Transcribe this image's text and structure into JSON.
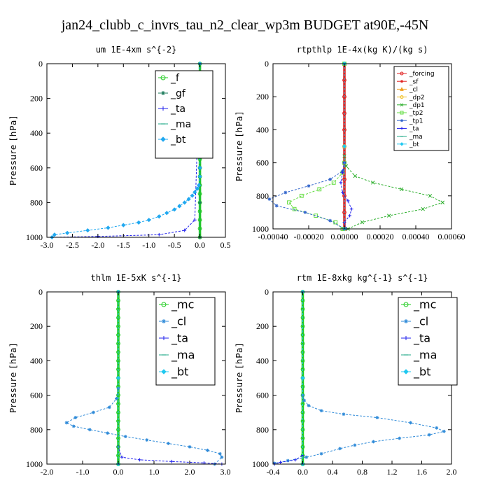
{
  "figure": {
    "title": "jan24_clubb_c_invrs_tau_n2_clear_wp3m  BUDGET at90E,-45N"
  },
  "chart_data": [
    {
      "type": "line",
      "title": "um   1E-4xm s^{-2}",
      "ylabel": "Pressure [hPa]",
      "xlim": [
        -3.0,
        0.5
      ],
      "ylim": [
        1000,
        0
      ],
      "xticks": [
        "-3.0",
        "-2.5",
        "-2.0",
        "-1.5",
        "-1.0",
        "-0.5",
        "0.0",
        "0.5"
      ],
      "xtick_values": [
        -3.0,
        -2.5,
        -2.0,
        -1.5,
        -1.0,
        -0.5,
        0.0,
        0.5
      ],
      "yticks": [
        "0",
        "200",
        "400",
        "600",
        "800",
        "1000"
      ],
      "ytick_values": [
        0,
        200,
        400,
        600,
        800,
        1000
      ],
      "legend_position": "top-right",
      "series": [
        {
          "name": "_f",
          "color": "#22cc22",
          "marker": "circle",
          "x": [
            0,
            0,
            0,
            0,
            0,
            0,
            0,
            0,
            0,
            0,
            0,
            0,
            0,
            0,
            0,
            0,
            0,
            0,
            0,
            0,
            0
          ],
          "y": [
            0,
            50,
            100,
            150,
            200,
            250,
            300,
            350,
            400,
            450,
            500,
            550,
            600,
            650,
            700,
            750,
            800,
            850,
            900,
            950,
            1000
          ]
        },
        {
          "name": "_gf",
          "color": "#1a7a5a",
          "marker": "star",
          "x": [
            0,
            0,
            0,
            0,
            0,
            0
          ],
          "y": [
            0,
            200,
            400,
            600,
            800,
            1000
          ]
        },
        {
          "name": "_ta",
          "color": "#2020ee",
          "marker": "plus",
          "x": [
            0,
            -0.1,
            -0.3,
            -0.8,
            -2.0,
            -2.9
          ],
          "y": [
            0,
            900,
            960,
            985,
            995,
            1000
          ]
        },
        {
          "name": "_ma",
          "color": "#22aa88",
          "marker": "dash",
          "x": [
            0,
            0,
            0,
            0
          ],
          "y": [
            0,
            300,
            700,
            1000
          ]
        },
        {
          "name": "_bt",
          "color": "#20a8f0",
          "marker": "diamond",
          "x": [
            0,
            0,
            0,
            0,
            0,
            -0.02,
            -0.05,
            -0.1,
            -0.15,
            -0.22,
            -0.3,
            -0.4,
            -0.5,
            -0.65,
            -0.8,
            -1.0,
            -1.2,
            -1.5,
            -1.8,
            -2.2,
            -2.6,
            -2.85,
            -2.9
          ],
          "y": [
            0,
            200,
            400,
            600,
            650,
            700,
            720,
            740,
            760,
            780,
            800,
            820,
            840,
            860,
            880,
            900,
            915,
            930,
            945,
            960,
            975,
            985,
            1000
          ]
        }
      ]
    },
    {
      "type": "line",
      "title": "rtpthlp   1E-4x(kg K)/(kg s)",
      "ylabel": "Pressure [hPa]",
      "xlim": [
        -0.0004,
        0.0006
      ],
      "ylim": [
        1000,
        0
      ],
      "xticks": [
        "-0.00040",
        "-0.00020",
        "0.00000",
        "0.00020",
        "0.00040",
        "0.00060"
      ],
      "xtick_values": [
        -0.0004,
        -0.0002,
        0.0,
        0.0002,
        0.0004,
        0.0006
      ],
      "yticks": [
        "0",
        "200",
        "400",
        "600",
        "800",
        "1000"
      ],
      "ytick_values": [
        0,
        200,
        400,
        600,
        800,
        1000
      ],
      "legend_position": "top-right",
      "series": [
        {
          "name": "_forcing",
          "color": "#e02020",
          "marker": "circle",
          "x": [
            0,
            0,
            0,
            0,
            0,
            0,
            0,
            0,
            0,
            0,
            0
          ],
          "y": [
            0,
            100,
            200,
            300,
            400,
            500,
            600,
            700,
            800,
            900,
            1000
          ]
        },
        {
          "name": "_sf",
          "color": "#e02020",
          "marker": "star",
          "x": [
            0,
            0,
            0
          ],
          "y": [
            0,
            500,
            1000
          ]
        },
        {
          "name": "_cl",
          "color": "#f0a020",
          "marker": "triangle",
          "x": [
            0,
            0,
            0
          ],
          "y": [
            0,
            500,
            1000
          ]
        },
        {
          "name": "_dp2",
          "color": "#f0c020",
          "marker": "circle-open",
          "x": [
            0,
            0,
            0
          ],
          "y": [
            0,
            500,
            1000
          ]
        },
        {
          "name": "_dp1",
          "color": "#30b030",
          "marker": "x",
          "x": [
            0,
            0,
            1e-05,
            6e-05,
            0.00016,
            0.00032,
            0.00048,
            0.00055,
            0.00044,
            0.00025,
            0.0001,
            2e-05
          ],
          "y": [
            0,
            560,
            620,
            680,
            720,
            760,
            800,
            840,
            880,
            920,
            960,
            1000
          ]
        },
        {
          "name": "_tp2",
          "color": "#66dd44",
          "marker": "square",
          "x": [
            0,
            0,
            -1e-05,
            -6e-05,
            -0.00014,
            -0.00024,
            -0.00031,
            -0.00028,
            -0.00016,
            -5e-05,
            -1e-05
          ],
          "y": [
            0,
            600,
            660,
            720,
            760,
            800,
            840,
            880,
            920,
            960,
            1000
          ]
        },
        {
          "name": "_tp1",
          "color": "#3366cc",
          "marker": "star",
          "x": [
            0,
            0,
            -1e-05,
            -8e-05,
            -0.0002,
            -0.00033,
            -0.00042,
            -0.00038,
            -0.00022,
            -8e-05,
            0.0
          ],
          "y": [
            0,
            600,
            650,
            700,
            740,
            780,
            820,
            860,
            900,
            950,
            1000
          ]
        },
        {
          "name": "_ta",
          "color": "#2020ee",
          "marker": "plus",
          "x": [
            0,
            0,
            -1e-05,
            -2e-05,
            -1e-05,
            2e-05,
            4e-05,
            3e-05,
            0.0,
            1e-05
          ],
          "y": [
            0,
            600,
            660,
            720,
            780,
            830,
            880,
            920,
            960,
            1000
          ]
        },
        {
          "name": "_ma",
          "color": "#22aa88",
          "marker": "dash",
          "x": [
            0,
            0,
            0
          ],
          "y": [
            0,
            500,
            1000
          ]
        },
        {
          "name": "_bt",
          "color": "#20c8f0",
          "marker": "diamond",
          "x": [
            0,
            0,
            0
          ],
          "y": [
            0,
            500,
            1000
          ]
        }
      ]
    },
    {
      "type": "line",
      "title": "thlm   1E-5xK s^{-1}",
      "ylabel": "Pressure [hPa]",
      "xlim": [
        -2.0,
        3.0
      ],
      "ylim": [
        1000,
        0
      ],
      "xticks": [
        "-2.0",
        "-1.0",
        "0.0",
        "1.0",
        "2.0",
        "3.0"
      ],
      "xtick_values": [
        -2.0,
        -1.0,
        0.0,
        1.0,
        2.0,
        3.0
      ],
      "yticks": [
        "0",
        "200",
        "400",
        "600",
        "800",
        "1000"
      ],
      "ytick_values": [
        0,
        200,
        400,
        600,
        800,
        1000
      ],
      "legend_position": "top-right",
      "series": [
        {
          "name": "_mc",
          "color": "#22cc22",
          "marker": "circle",
          "x": [
            0,
            0,
            0,
            0,
            0,
            0,
            0,
            0,
            0,
            0,
            0,
            0,
            0,
            0,
            0,
            0,
            0,
            0,
            0,
            0,
            0
          ],
          "y": [
            0,
            50,
            100,
            150,
            200,
            250,
            300,
            350,
            400,
            450,
            500,
            550,
            600,
            650,
            700,
            750,
            800,
            850,
            900,
            950,
            1000
          ]
        },
        {
          "name": "_cl",
          "color": "#2e8ad8",
          "marker": "star",
          "x": [
            0,
            0,
            -0.05,
            -0.25,
            -0.7,
            -1.2,
            -1.45,
            -1.25,
            -0.8,
            -0.3,
            0.2,
            0.8,
            1.4,
            2.0,
            2.5,
            2.85,
            2.9,
            2.7
          ],
          "y": [
            0,
            560,
            620,
            670,
            700,
            730,
            760,
            780,
            800,
            820,
            840,
            860,
            880,
            900,
            920,
            940,
            960,
            1000
          ]
        },
        {
          "name": "_ta",
          "color": "#2020ee",
          "marker": "plus",
          "x": [
            0,
            0,
            0.1,
            0.6,
            1.5,
            2.4,
            2.9
          ],
          "y": [
            0,
            900,
            960,
            975,
            985,
            993,
            1000
          ]
        },
        {
          "name": "_ma",
          "color": "#22aa88",
          "marker": "dash",
          "x": [
            0,
            0,
            0
          ],
          "y": [
            0,
            500,
            1000
          ]
        },
        {
          "name": "_bt",
          "color": "#20c8f0",
          "marker": "diamond",
          "x": [
            0,
            0,
            0
          ],
          "y": [
            0,
            500,
            1000
          ]
        }
      ]
    },
    {
      "type": "line",
      "title": "rtm   1E-8xkg kg^{-1} s^{-1}",
      "ylabel": "Pressure [hPa]",
      "xlim": [
        -0.4,
        2.0
      ],
      "ylim": [
        1000,
        0
      ],
      "xticks": [
        "-0.4",
        "0.0",
        "0.4",
        "0.8",
        "1.2",
        "1.6",
        "2.0"
      ],
      "xtick_values": [
        -0.4,
        0.0,
        0.4,
        0.8,
        1.2,
        1.6,
        2.0
      ],
      "yticks": [
        "0",
        "200",
        "400",
        "600",
        "800",
        "1000"
      ],
      "ytick_values": [
        0,
        200,
        400,
        600,
        800,
        1000
      ],
      "legend_position": "top-right",
      "series": [
        {
          "name": "_mc",
          "color": "#22cc22",
          "marker": "circle",
          "x": [
            0,
            0,
            0,
            0,
            0,
            0,
            0,
            0,
            0,
            0,
            0,
            0,
            0,
            0,
            0,
            0,
            0,
            0,
            0,
            0,
            0
          ],
          "y": [
            0,
            50,
            100,
            150,
            200,
            250,
            300,
            350,
            400,
            450,
            500,
            550,
            600,
            650,
            700,
            750,
            800,
            850,
            900,
            950,
            1000
          ]
        },
        {
          "name": "_cl",
          "color": "#2e8ad8",
          "marker": "star",
          "x": [
            0,
            0,
            0.02,
            0.08,
            0.25,
            0.55,
            1.0,
            1.45,
            1.8,
            1.9,
            1.7,
            1.3,
            0.95,
            0.7,
            0.5,
            0.25,
            0.05,
            -0.2,
            -0.38
          ],
          "y": [
            0,
            600,
            630,
            660,
            690,
            710,
            730,
            760,
            790,
            810,
            830,
            850,
            870,
            890,
            910,
            940,
            960,
            980,
            995
          ]
        },
        {
          "name": "_ta",
          "color": "#2020ee",
          "marker": "plus",
          "x": [
            0,
            0,
            -0.1,
            -0.3,
            -0.38
          ],
          "y": [
            0,
            950,
            975,
            990,
            1000
          ]
        },
        {
          "name": "_ma",
          "color": "#22aa88",
          "marker": "dash",
          "x": [
            0,
            0,
            0
          ],
          "y": [
            0,
            500,
            1000
          ]
        },
        {
          "name": "_bt",
          "color": "#20c8f0",
          "marker": "diamond",
          "x": [
            0,
            0,
            0
          ],
          "y": [
            0,
            500,
            1000
          ]
        }
      ]
    }
  ]
}
